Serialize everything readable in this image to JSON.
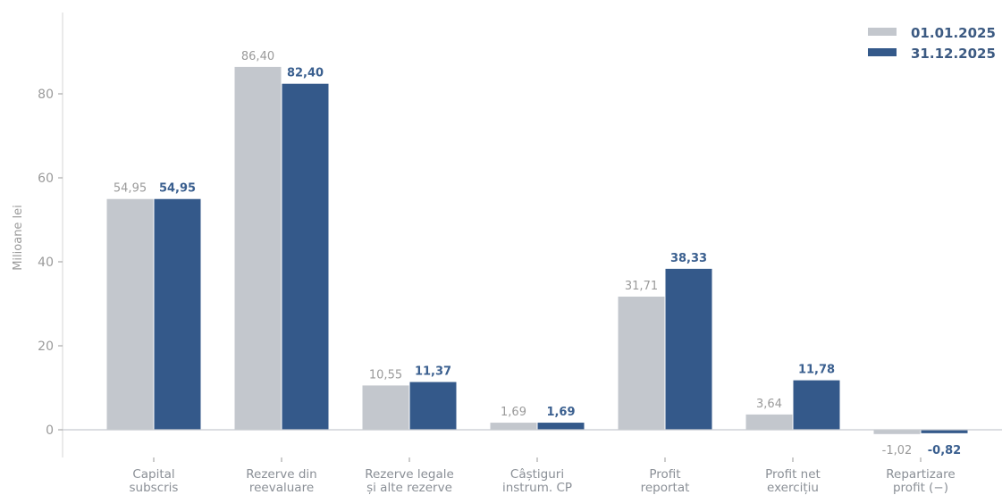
{
  "chart_data": {
    "type": "bar",
    "ylabel": "Milioane lei",
    "ylim": [
      -4,
      98
    ],
    "yticks": [
      0,
      20,
      40,
      60,
      80
    ],
    "grid": false,
    "legend_position": "top-right",
    "categories": [
      [
        "Capital",
        "subscris"
      ],
      [
        "Rezerve din",
        "reevaluare"
      ],
      [
        "Rezerve legale",
        "și alte rezerve"
      ],
      [
        "Câștiguri",
        "instrum. CP"
      ],
      [
        "Profit",
        "reportat"
      ],
      [
        "Profit net",
        "exercițiu"
      ],
      [
        "Repartizare",
        "profit (−)"
      ]
    ],
    "series": [
      {
        "name": "01.01.2025",
        "color": "#c3c7cd",
        "values": [
          54.95,
          86.4,
          10.55,
          1.69,
          31.71,
          3.64,
          -1.02
        ],
        "labels": [
          "54,95",
          "86,40",
          "10,55",
          "1,69",
          "31,71",
          "3,64",
          "-1,02"
        ]
      },
      {
        "name": "31.12.2025",
        "color": "#34598a",
        "values": [
          54.95,
          82.4,
          11.37,
          1.69,
          38.33,
          11.78,
          -0.82
        ],
        "labels": [
          "54,95",
          "82,40",
          "11,37",
          "1,69",
          "38,33",
          "11,78",
          "-0,82"
        ]
      }
    ]
  }
}
